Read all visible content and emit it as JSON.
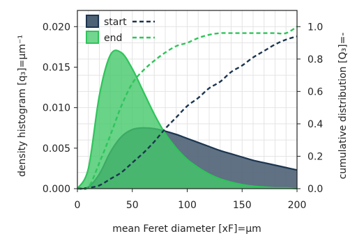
{
  "chart_data": {
    "type": "area",
    "xlabel": "mean Feret diameter [xF]=μm",
    "ylabel_left": "density histogram [q₃]=μm⁻¹",
    "ylabel_right": "cumulative distribution [Q₃]=-",
    "xlim": [
      0,
      200
    ],
    "ylim_left": [
      0,
      0.022
    ],
    "ylim_right": [
      0,
      1.1
    ],
    "xticks": [
      "0",
      "50",
      "100",
      "150",
      "200"
    ],
    "yticks_left": [
      "0.000",
      "0.005",
      "0.010",
      "0.015",
      "0.020"
    ],
    "yticks_right": [
      "0.0",
      "0.2",
      "0.4",
      "0.6",
      "0.8",
      "1.0"
    ],
    "grid": true,
    "legend_position": "top-left",
    "x": [
      0,
      10,
      20,
      30,
      40,
      50,
      60,
      70,
      80,
      90,
      100,
      110,
      120,
      130,
      140,
      150,
      160,
      170,
      180,
      190,
      200
    ],
    "series": [
      {
        "name": "start",
        "color": "#1c3550",
        "fill": "#4e6275",
        "density": [
          0,
          0.0002,
          0.0018,
          0.0045,
          0.0064,
          0.0073,
          0.0075,
          0.0074,
          0.0071,
          0.0067,
          0.0062,
          0.0057,
          0.0052,
          0.0047,
          0.0043,
          0.0039,
          0.0035,
          0.0032,
          0.0029,
          0.0026,
          0.0023
        ],
        "cumulative": [
          0,
          0.005,
          0.02,
          0.06,
          0.1,
          0.16,
          0.22,
          0.29,
          0.37,
          0.44,
          0.51,
          0.56,
          0.62,
          0.66,
          0.72,
          0.76,
          0.81,
          0.85,
          0.89,
          0.92,
          0.94
        ]
      },
      {
        "name": "end",
        "color": "#2fc45a",
        "fill": "#43c86a",
        "density": [
          0,
          0.0025,
          0.0115,
          0.0165,
          0.0168,
          0.0148,
          0.012,
          0.0092,
          0.0068,
          0.005,
          0.0036,
          0.0026,
          0.0018,
          0.0012,
          0.0008,
          0.0005,
          0.0003,
          0.0002,
          0.0001,
          0.0001,
          0.0
        ],
        "cumulative": [
          0,
          0.01,
          0.16,
          0.33,
          0.51,
          0.65,
          0.73,
          0.79,
          0.84,
          0.88,
          0.9,
          0.93,
          0.95,
          0.96,
          0.96,
          0.96,
          0.96,
          0.96,
          0.96,
          0.96,
          1.0
        ]
      }
    ]
  }
}
